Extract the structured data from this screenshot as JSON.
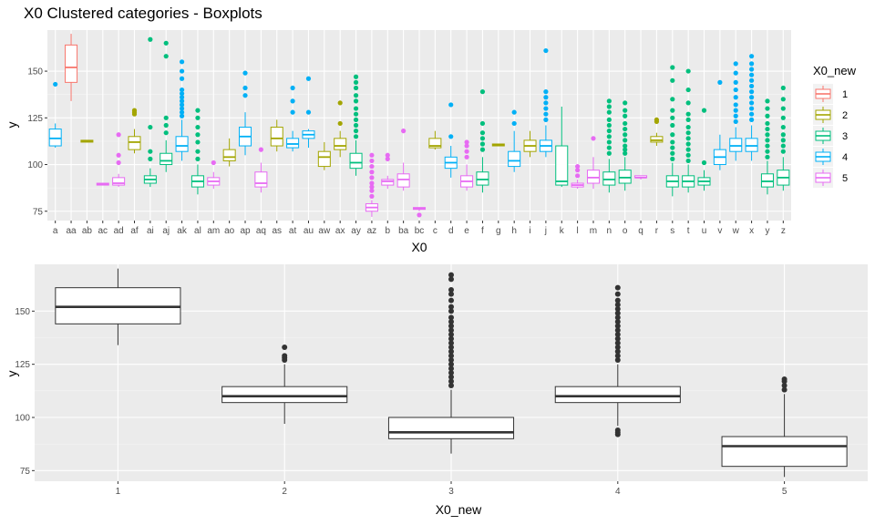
{
  "chart_data": [
    {
      "type": "box",
      "title": "X0 Clustered categories - Boxplots",
      "xlabel": "X0",
      "ylabel": "y",
      "ylim": [
        70,
        172
      ],
      "yticks": [
        75,
        100,
        125,
        150
      ],
      "grid": true,
      "legend": {
        "title": "X0_new",
        "position": "right",
        "entries": [
          "1",
          "2",
          "3",
          "4",
          "5"
        ]
      },
      "groups": [
        {
          "name": "1",
          "color": "#F8766D"
        },
        {
          "name": "2",
          "color": "#A3A500"
        },
        {
          "name": "3",
          "color": "#00BF7D"
        },
        {
          "name": "4",
          "color": "#00B0F6"
        },
        {
          "name": "5",
          "color": "#E76BF3"
        }
      ],
      "categories": [
        "a",
        "aa",
        "ab",
        "ac",
        "ad",
        "af",
        "ai",
        "aj",
        "ak",
        "al",
        "am",
        "ao",
        "ap",
        "aq",
        "as",
        "at",
        "au",
        "aw",
        "ax",
        "ay",
        "az",
        "b",
        "ba",
        "bc",
        "c",
        "d",
        "e",
        "f",
        "g",
        "h",
        "i",
        "j",
        "k",
        "l",
        "m",
        "n",
        "o",
        "q",
        "r",
        "s",
        "t",
        "u",
        "v",
        "w",
        "x",
        "y",
        "z"
      ],
      "boxes": [
        {
          "category": "a",
          "group": "4",
          "stats": [
            109,
            110,
            114,
            119,
            122
          ],
          "outliers": [
            143
          ]
        },
        {
          "category": "aa",
          "group": "1",
          "stats": [
            134,
            144,
            152,
            164,
            170
          ],
          "outliers": []
        },
        {
          "category": "ab",
          "group": "2",
          "stats": [
            112,
            112,
            112.5,
            113,
            113
          ],
          "outliers": []
        },
        {
          "category": "ac",
          "group": "5",
          "stats": [
            89,
            89,
            89.5,
            90,
            90
          ],
          "outliers": []
        },
        {
          "category": "ad",
          "group": "5",
          "stats": [
            88,
            89,
            90,
            93,
            95
          ],
          "outliers": [
            101,
            105,
            116
          ]
        },
        {
          "category": "af",
          "group": "2",
          "stats": [
            106,
            108,
            112,
            115,
            119
          ],
          "outliers": [
            127,
            128,
            129
          ]
        },
        {
          "category": "ai",
          "group": "3",
          "stats": [
            88,
            90,
            92,
            94,
            98
          ],
          "outliers": [
            103,
            107,
            120,
            167
          ]
        },
        {
          "category": "aj",
          "group": "3",
          "stats": [
            96,
            100,
            102,
            106,
            113
          ],
          "outliers": [
            117,
            121,
            125,
            158,
            165
          ]
        },
        {
          "category": "ak",
          "group": "4",
          "stats": [
            102,
            107,
            110,
            115,
            124
          ],
          "outliers": [
            126,
            128,
            130,
            132,
            134,
            136,
            138,
            140,
            146,
            150,
            155
          ]
        },
        {
          "category": "al",
          "group": "3",
          "stats": [
            84,
            88,
            91,
            94,
            100
          ],
          "outliers": [
            103,
            107,
            112,
            116,
            120,
            125,
            129
          ]
        },
        {
          "category": "am",
          "group": "5",
          "stats": [
            87,
            89,
            91,
            93,
            96
          ],
          "outliers": [
            101
          ]
        },
        {
          "category": "ao",
          "group": "2",
          "stats": [
            99,
            102,
            104,
            108,
            114
          ],
          "outliers": []
        },
        {
          "category": "ap",
          "group": "4",
          "stats": [
            105,
            110,
            115,
            120,
            128
          ],
          "outliers": [
            137,
            141,
            149
          ]
        },
        {
          "category": "aq",
          "group": "5",
          "stats": [
            85,
            88,
            90,
            96,
            101
          ],
          "outliers": [
            108
          ]
        },
        {
          "category": "as",
          "group": "2",
          "stats": [
            107,
            110,
            114,
            120,
            124
          ],
          "outliers": []
        },
        {
          "category": "at",
          "group": "4",
          "stats": [
            107,
            109,
            111,
            114,
            118
          ],
          "outliers": [
            128,
            134,
            141
          ]
        },
        {
          "category": "au",
          "group": "4",
          "stats": [
            109,
            114,
            116,
            118,
            119
          ],
          "outliers": [
            128,
            146
          ]
        },
        {
          "category": "aw",
          "group": "2",
          "stats": [
            97,
            99,
            104,
            107,
            112
          ],
          "outliers": []
        },
        {
          "category": "ax",
          "group": "2",
          "stats": [
            104,
            108,
            110,
            114,
            118
          ],
          "outliers": [
            122,
            133
          ]
        },
        {
          "category": "ay",
          "group": "3",
          "stats": [
            94,
            98,
            101,
            106,
            113
          ],
          "outliers": [
            115,
            118,
            121,
            124,
            127,
            130,
            134,
            137,
            141,
            144,
            147
          ]
        },
        {
          "category": "az",
          "group": "5",
          "stats": [
            72,
            75,
            77,
            79,
            81
          ],
          "outliers": [
            83,
            86,
            88,
            90,
            93,
            96,
            99,
            102,
            105
          ]
        },
        {
          "category": "b",
          "group": "5",
          "stats": [
            87,
            89,
            91,
            92,
            94
          ],
          "outliers": [
            103,
            105
          ]
        },
        {
          "category": "ba",
          "group": "5",
          "stats": [
            86,
            88,
            92,
            95,
            101
          ],
          "outliers": [
            118
          ]
        },
        {
          "category": "bc",
          "group": "5",
          "stats": [
            75,
            76,
            76.5,
            77,
            77
          ],
          "outliers": [
            73
          ]
        },
        {
          "category": "c",
          "group": "2",
          "stats": [
            108,
            109,
            110,
            114,
            118
          ],
          "outliers": []
        },
        {
          "category": "d",
          "group": "4",
          "stats": [
            93,
            98,
            101,
            104,
            110
          ],
          "outliers": [
            115,
            132
          ]
        },
        {
          "category": "e",
          "group": "5",
          "stats": [
            86,
            88,
            91,
            94,
            100
          ],
          "outliers": [
            104,
            107,
            110,
            112
          ]
        },
        {
          "category": "f",
          "group": "3",
          "stats": [
            85,
            89,
            92,
            96,
            104
          ],
          "outliers": [
            108,
            111,
            114,
            117,
            122,
            139
          ]
        },
        {
          "category": "g",
          "group": "2",
          "stats": [
            110,
            110,
            110.5,
            111,
            111
          ],
          "outliers": []
        },
        {
          "category": "h",
          "group": "4",
          "stats": [
            96,
            99,
            102,
            107,
            118
          ],
          "outliers": [
            122,
            128
          ]
        },
        {
          "category": "i",
          "group": "2",
          "stats": [
            104,
            107,
            110,
            113,
            118
          ],
          "outliers": []
        },
        {
          "category": "j",
          "group": "4",
          "stats": [
            104,
            107,
            110,
            113,
            121
          ],
          "outliers": [
            124,
            127,
            130,
            133,
            136,
            139,
            161
          ]
        },
        {
          "category": "k",
          "group": "3",
          "stats": [
            88,
            89,
            91,
            110,
            131
          ],
          "outliers": []
        },
        {
          "category": "l",
          "group": "5",
          "stats": [
            87,
            88,
            89,
            90,
            92
          ],
          "outliers": [
            94,
            97,
            99
          ]
        },
        {
          "category": "m",
          "group": "5",
          "stats": [
            87,
            90,
            93,
            97,
            104
          ],
          "outliers": [
            114
          ]
        },
        {
          "category": "n",
          "group": "3",
          "stats": [
            85,
            89,
            92,
            96,
            103
          ],
          "outliers": [
            106,
            109,
            112,
            115,
            118,
            121,
            124,
            128,
            131,
            134
          ]
        },
        {
          "category": "o",
          "group": "3",
          "stats": [
            86,
            90,
            93,
            97,
            104
          ],
          "outliers": [
            106,
            108,
            110,
            113,
            116,
            119,
            122,
            126,
            129,
            133
          ]
        },
        {
          "category": "q",
          "group": "5",
          "stats": [
            92,
            93,
            93,
            94,
            94
          ],
          "outliers": []
        },
        {
          "category": "r",
          "group": "2",
          "stats": [
            110,
            112,
            113,
            115,
            117
          ],
          "outliers": [
            123,
            124
          ]
        },
        {
          "category": "s",
          "group": "3",
          "stats": [
            83,
            88,
            91,
            94,
            101
          ],
          "outliers": [
            103,
            106,
            109,
            112,
            116,
            121,
            125,
            129,
            135,
            145,
            152
          ]
        },
        {
          "category": "t",
          "group": "3",
          "stats": [
            85,
            88,
            91,
            94,
            100
          ],
          "outliers": [
            102,
            105,
            108,
            111,
            114,
            117,
            120,
            124,
            127,
            133,
            140,
            150
          ]
        },
        {
          "category": "u",
          "group": "3",
          "stats": [
            86,
            89,
            91,
            93,
            97
          ],
          "outliers": [
            101,
            129
          ]
        },
        {
          "category": "v",
          "group": "4",
          "stats": [
            97,
            100,
            104,
            108,
            116
          ],
          "outliers": [
            144
          ]
        },
        {
          "category": "w",
          "group": "4",
          "stats": [
            102,
            107,
            110,
            114,
            120
          ],
          "outliers": [
            123,
            126,
            129,
            132,
            136,
            140,
            144,
            149,
            154
          ]
        },
        {
          "category": "x",
          "group": "4",
          "stats": [
            102,
            107,
            110,
            114,
            121
          ],
          "outliers": [
            124,
            127,
            130,
            133,
            136,
            139,
            142,
            145,
            148,
            151,
            154,
            158
          ]
        },
        {
          "category": "y",
          "group": "3",
          "stats": [
            84,
            88,
            91,
            95,
            102
          ],
          "outliers": [
            104,
            107,
            110,
            113,
            116,
            119,
            122,
            126,
            130,
            134
          ]
        },
        {
          "category": "z",
          "group": "3",
          "stats": [
            86,
            89,
            93,
            97,
            104
          ],
          "outliers": [
            107,
            110,
            113,
            116,
            120,
            125,
            130,
            135,
            141
          ]
        }
      ]
    },
    {
      "type": "box",
      "title": "",
      "xlabel": "X0_new",
      "ylabel": "y",
      "ylim": [
        70,
        172
      ],
      "yticks": [
        75,
        100,
        125,
        150
      ],
      "grid": true,
      "categories": [
        "1",
        "2",
        "3",
        "4",
        "5"
      ],
      "boxes": [
        {
          "category": "1",
          "stats": [
            134,
            144,
            152,
            161,
            170
          ],
          "outliers": []
        },
        {
          "category": "2",
          "stats": [
            97,
            107,
            110,
            114.5,
            125
          ],
          "outliers": [
            127,
            128,
            129,
            133
          ]
        },
        {
          "category": "3",
          "stats": [
            83,
            90,
            93,
            100,
            113
          ],
          "outliers": [
            115,
            117,
            119,
            121,
            123,
            125,
            127,
            129,
            131,
            133,
            135,
            137,
            139,
            141,
            143,
            145,
            147,
            150,
            152,
            155,
            158,
            160,
            165,
            167
          ]
        },
        {
          "category": "4",
          "stats": [
            96,
            107,
            110,
            114.5,
            125
          ],
          "outliers": [
            92,
            93,
            94,
            127,
            129,
            131,
            133,
            135,
            137,
            139,
            141,
            143,
            145,
            147,
            149,
            151,
            153,
            155,
            158,
            161
          ]
        },
        {
          "category": "5",
          "stats": [
            72,
            77,
            86.5,
            91,
            111
          ],
          "outliers": [
            113,
            115,
            117,
            118
          ]
        }
      ]
    }
  ]
}
